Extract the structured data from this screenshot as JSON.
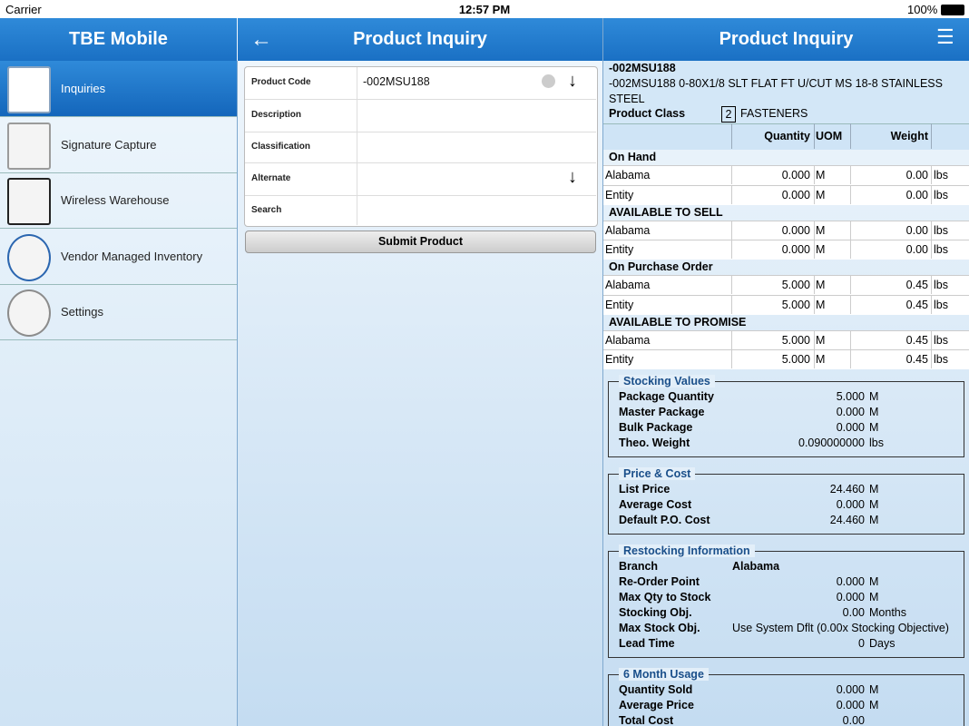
{
  "status_bar": {
    "carrier": "Carrier",
    "time": "12:57 PM",
    "battery": "100%"
  },
  "sidebar": {
    "title": "TBE Mobile",
    "items": [
      "Inquiries",
      "Signature Capture",
      "Wireless Warehouse",
      "Vendor Managed Inventory",
      "Settings"
    ]
  },
  "form": {
    "title": "Product Inquiry",
    "fields": [
      "Product Code",
      "Description",
      "Classification",
      "Alternate",
      "Search"
    ],
    "product_code": "-002MSU188",
    "submit": "Submit Product"
  },
  "detail": {
    "title": "Product Inquiry",
    "code": "-002MSU188",
    "description": "-002MSU188 0-80X1/8 SLT FLAT FT U/CUT MS 18-8 STAINLESS STEEL",
    "class_label": "Product Class",
    "class_code": "2",
    "class_name": "FASTENERS",
    "columns": [
      "Quantity",
      "UOM",
      "Weight"
    ],
    "groups": [
      {
        "name": "On Hand",
        "rows": [
          [
            "Alabama",
            "0.000",
            "M",
            "0.00",
            "lbs"
          ],
          [
            "Entity",
            "0.000",
            "M",
            "0.00",
            "lbs"
          ]
        ]
      },
      {
        "name": "AVAILABLE TO SELL",
        "rows": [
          [
            "Alabama",
            "0.000",
            "M",
            "0.00",
            "lbs"
          ],
          [
            "Entity",
            "0.000",
            "M",
            "0.00",
            "lbs"
          ]
        ]
      },
      {
        "name": "On Purchase Order",
        "rows": [
          [
            "Alabama",
            "5.000",
            "M",
            "0.45",
            "lbs"
          ],
          [
            "Entity",
            "5.000",
            "M",
            "0.45",
            "lbs"
          ]
        ]
      },
      {
        "name": "AVAILABLE TO PROMISE",
        "rows": [
          [
            "Alabama",
            "5.000",
            "M",
            "0.45",
            "lbs"
          ],
          [
            "Entity",
            "5.000",
            "M",
            "0.45",
            "lbs"
          ]
        ]
      }
    ],
    "sections": [
      {
        "title": "Stocking Values",
        "rows": [
          [
            "Package Quantity",
            "5.000",
            "M"
          ],
          [
            "Master Package",
            "0.000",
            "M"
          ],
          [
            "Bulk Package",
            "0.000",
            "M"
          ],
          [
            "Theo. Weight",
            "0.090000000",
            "lbs"
          ]
        ]
      },
      {
        "title": "Price & Cost",
        "rows": [
          [
            "List Price",
            "24.460",
            "M"
          ],
          [
            "Average Cost",
            "0.000",
            "M"
          ],
          [
            "Default P.O. Cost",
            "24.460",
            "M"
          ]
        ]
      },
      {
        "title": "Restocking Information",
        "rows": [
          [
            "Branch",
            "Alabama"
          ],
          [
            "Re-Order Point",
            "0.000",
            "M"
          ],
          [
            "Max Qty to Stock",
            "0.000",
            "M"
          ],
          [
            "Stocking Obj.",
            "0.00",
            "Months"
          ],
          [
            "Max Stock Obj.",
            "Use System Dflt (0.00x Stocking Objective)"
          ],
          [
            "Lead Time",
            "0",
            "Days"
          ]
        ]
      },
      {
        "title": "6 Month Usage",
        "rows": [
          [
            "Quantity Sold",
            "0.000",
            "M"
          ],
          [
            "Average Price",
            "0.000",
            "M"
          ],
          [
            "Total Cost",
            "0.00"
          ]
        ]
      }
    ]
  }
}
